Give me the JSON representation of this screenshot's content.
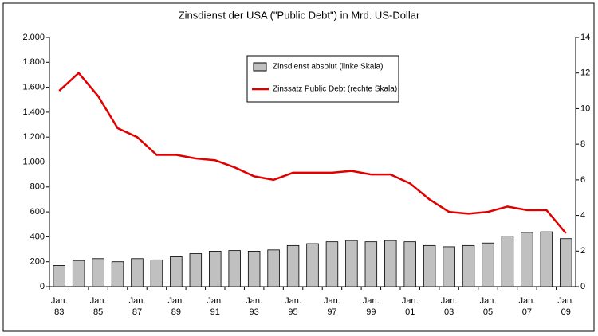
{
  "chart_data": {
    "type": "bar+line",
    "title": "Zinsdienst der USA (\"Public Debt\") in Mrd. US-Dollar",
    "categories": [
      "Jan. 83",
      null,
      "Jan. 85",
      null,
      "Jan. 87",
      null,
      "Jan. 89",
      null,
      "Jan. 91",
      null,
      "Jan. 93",
      null,
      "Jan. 95",
      null,
      "Jan. 97",
      null,
      "Jan. 99",
      null,
      "Jan. 01",
      null,
      "Jan. 03",
      null,
      "Jan. 05",
      null,
      "Jan. 07",
      null,
      "Jan. 09"
    ],
    "series": [
      {
        "name": "Zinsdienst absolut (linke Skala)",
        "type": "bar",
        "axis": "y",
        "color": "#c0c0c0",
        "values": [
          170,
          210,
          225,
          200,
          225,
          215,
          240,
          265,
          285,
          290,
          285,
          295,
          330,
          345,
          360,
          370,
          360,
          370,
          360,
          330,
          320,
          330,
          350,
          405,
          435,
          440,
          385
        ]
      },
      {
        "name": "Zinssatz Public Debt (rechte Skala)",
        "type": "line",
        "axis": "y2",
        "color": "#e00000",
        "values": [
          11.0,
          12.0,
          10.7,
          8.9,
          8.4,
          7.4,
          7.4,
          7.2,
          7.1,
          6.7,
          6.2,
          6.0,
          6.4,
          6.4,
          6.4,
          6.5,
          6.3,
          6.3,
          5.8,
          4.9,
          4.2,
          4.1,
          4.2,
          4.5,
          4.3,
          4.3,
          3.0
        ]
      }
    ],
    "ylim": [
      0,
      2000
    ],
    "yticks": [
      0,
      200,
      400,
      600,
      800,
      {
        "value": 1000,
        "label": "1.000"
      },
      {
        "value": 1200,
        "label": "1.200"
      },
      {
        "value": 1400,
        "label": "1.400"
      },
      {
        "value": 1600,
        "label": "1.600"
      },
      {
        "value": 1800,
        "label": "1.800"
      },
      {
        "value": 2000,
        "label": "2.000"
      }
    ],
    "y2lim": [
      0,
      14
    ],
    "y2ticks": [
      0,
      2,
      4,
      6,
      8,
      10,
      12,
      14
    ],
    "grid": false
  }
}
